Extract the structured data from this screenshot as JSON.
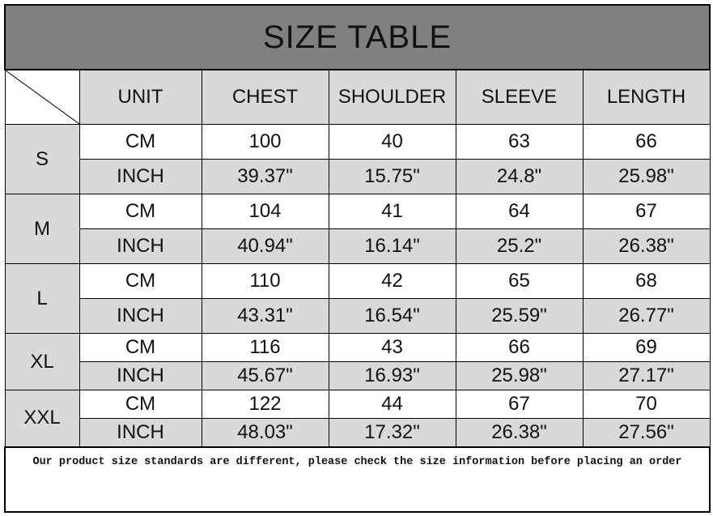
{
  "title": "SIZE TABLE",
  "headers": [
    "UNIT",
    "CHEST",
    "SHOULDER",
    "SLEEVE",
    "LENGTH"
  ],
  "colors": {
    "title_bg": "#808080",
    "header_bg": "#d9d9d9",
    "row_alt_bg": "#d9d9d9"
  },
  "sizes": [
    {
      "name": "S",
      "cm": {
        "unit": "CM",
        "values": [
          "100",
          "40",
          "63",
          "66"
        ]
      },
      "inch": {
        "unit": "INCH",
        "values": [
          "39.37\"",
          "15.75\"",
          "24.8\"",
          "25.98\""
        ]
      }
    },
    {
      "name": "M",
      "cm": {
        "unit": "CM",
        "values": [
          "104",
          "41",
          "64",
          "67"
        ]
      },
      "inch": {
        "unit": "INCH",
        "values": [
          "40.94\"",
          "16.14\"",
          "25.2\"",
          "26.38\""
        ]
      }
    },
    {
      "name": "L",
      "cm": {
        "unit": "CM",
        "values": [
          "110",
          "42",
          "65",
          "68"
        ]
      },
      "inch": {
        "unit": "INCH",
        "values": [
          "43.31\"",
          "16.54\"",
          "25.59\"",
          "26.77\""
        ]
      }
    },
    {
      "name": "XL",
      "cm": {
        "unit": "CM",
        "values": [
          "116",
          "43",
          "66",
          "69"
        ]
      },
      "inch": {
        "unit": "INCH",
        "values": [
          "45.67\"",
          "16.93\"",
          "25.98\"",
          "27.17\""
        ]
      }
    },
    {
      "name": "XXL",
      "cm": {
        "unit": "CM",
        "values": [
          "122",
          "44",
          "67",
          "70"
        ]
      },
      "inch": {
        "unit": "INCH",
        "values": [
          "48.03\"",
          "17.32\"",
          "26.38\"",
          "27.56\""
        ]
      }
    }
  ],
  "footer_note": "Our product size standards are different, please check the size information before placing an order"
}
